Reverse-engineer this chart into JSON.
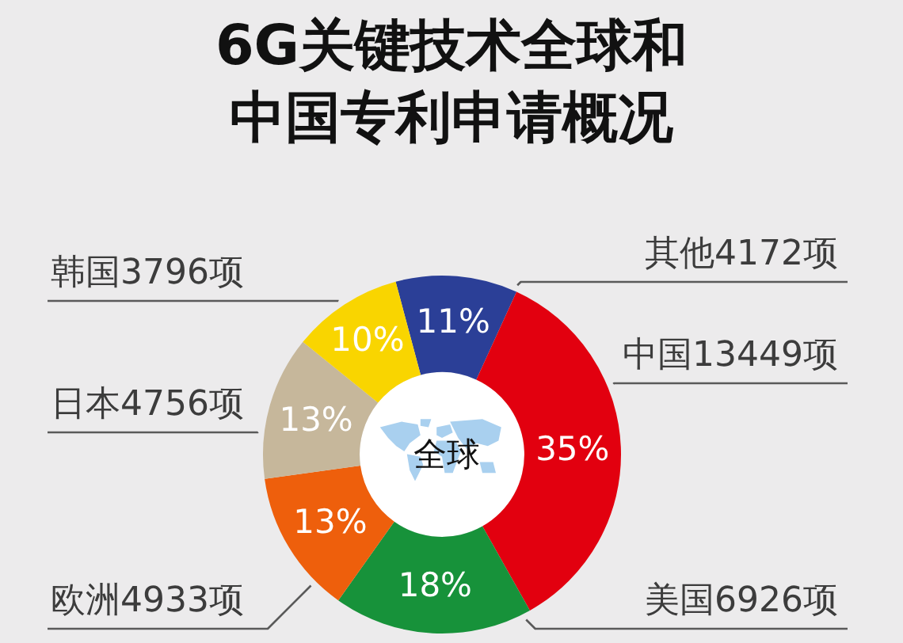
{
  "chart_data": {
    "type": "donut",
    "title": "6G关键技术全球和中国专利申请概况",
    "categories": [
      "其他4172项",
      "中国13449项",
      "美国6926项",
      "欧洲4933项",
      "日本4756项",
      "韩国3796项"
    ],
    "values": [
      11,
      35,
      18,
      13,
      13,
      10
    ],
    "colors": [
      "#2b3f97",
      "#e2000f",
      "#17923a",
      "#ee5f0c",
      "#c6b79b",
      "#f9d500"
    ],
    "value_labels": [
      "11%",
      "35%",
      "18%",
      "13%",
      "13%",
      "10%"
    ],
    "annotations": [
      "全球"
    ]
  }
}
